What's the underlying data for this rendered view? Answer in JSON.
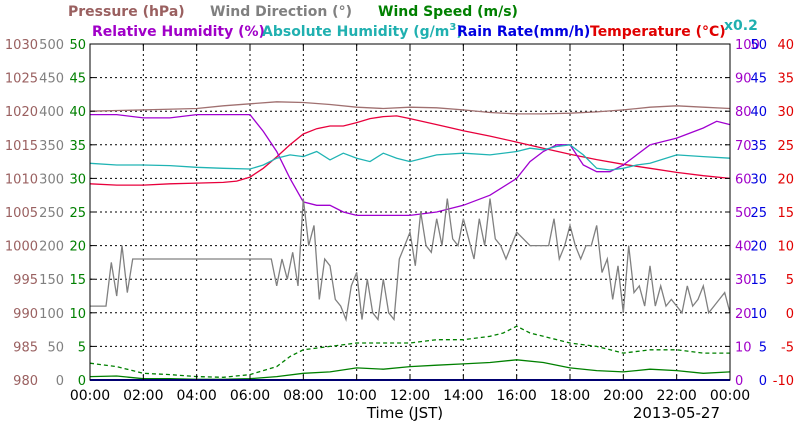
{
  "chart_data": {
    "type": "line",
    "date": "2013-05-27",
    "xlabel": "Time (JST)",
    "x_ticks": [
      "00:00",
      "02:00",
      "04:00",
      "06:00",
      "08:00",
      "10:00",
      "12:00",
      "14:00",
      "16:00",
      "18:00",
      "20:00",
      "22:00",
      "00:00"
    ],
    "xlim_hours": [
      0,
      24
    ],
    "grid": true,
    "legend": {
      "pressure": "Pressure (hPa)",
      "wind_direction": "Wind Direction (°)",
      "wind_speed": "Wind Speed (m/s)",
      "relative_humidity": "Relative Humidity (%)",
      "absolute_humidity_pre": "Absolute Humidity (g/m",
      "absolute_humidity_sup": "3",
      "absolute_humidity_post": ")",
      "rain_rate": "Rain Rate(mm/h)",
      "temperature": "Temperature (°C)",
      "abs_humidity_scale_note": "x0.2"
    },
    "axes": {
      "pressure": {
        "ticks": [
          "980",
          "985",
          "990",
          "995",
          "1000",
          "1005",
          "1010",
          "1015",
          "1020",
          "1025",
          "1030"
        ],
        "ylim": [
          980,
          1030
        ],
        "color": "#9a6060"
      },
      "wind_direction": {
        "ticks": [
          "0",
          "50",
          "100",
          "150",
          "200",
          "250",
          "300",
          "350",
          "400",
          "450",
          "500"
        ],
        "ylim": [
          0,
          500
        ],
        "color": "#808080"
      },
      "wind_speed": {
        "ticks": [
          "0",
          "5",
          "10",
          "15",
          "20",
          "25",
          "30",
          "35",
          "40",
          "45",
          "50"
        ],
        "ylim": [
          0,
          50
        ],
        "color": "#008000"
      },
      "relative_humidity": {
        "ticks": [
          "0",
          "10",
          "20",
          "30",
          "40",
          "50",
          "60",
          "70",
          "80",
          "90",
          "100"
        ],
        "ylim": [
          0,
          100
        ],
        "color": "#a000c8"
      },
      "rain_rate": {
        "ticks": [
          "0",
          "5",
          "10",
          "15",
          "20",
          "25",
          "30",
          "35",
          "40",
          "45",
          "50"
        ],
        "ylim": [
          0,
          50
        ],
        "color": "#0000e0"
      },
      "temperature": {
        "ticks": [
          "-10",
          "-5",
          "0",
          "5",
          "10",
          "15",
          "20",
          "25",
          "30",
          "35",
          "40"
        ],
        "ylim": [
          -10,
          40
        ],
        "color": "#e00000"
      }
    },
    "colors": {
      "absolute_humidity": "#20b0b0",
      "wind_speed_gust": "#008000"
    },
    "series": [
      {
        "name": "Pressure (hPa)",
        "axis": "pressure",
        "color": "#a07070",
        "x": [
          0,
          2,
          4,
          5,
          6,
          7,
          8,
          9,
          10,
          11,
          12,
          13,
          14,
          15,
          16,
          17,
          18,
          19,
          20,
          21,
          22,
          23,
          24
        ],
        "y": [
          1020.0,
          1020.2,
          1020.4,
          1020.8,
          1021.1,
          1021.4,
          1021.3,
          1021.0,
          1020.6,
          1020.4,
          1020.6,
          1020.5,
          1020.2,
          1019.8,
          1019.6,
          1019.6,
          1019.7,
          1019.9,
          1020.2,
          1020.6,
          1020.8,
          1020.6,
          1020.4
        ]
      },
      {
        "name": "Temperature (°C)",
        "axis": "temperature",
        "color": "#e8003c",
        "x": [
          0,
          1,
          2,
          3,
          4,
          5,
          5.5,
          6,
          6.5,
          7,
          7.5,
          8,
          8.5,
          9,
          9.5,
          10,
          10.5,
          11,
          11.5,
          12,
          13,
          14,
          15,
          16,
          17,
          18,
          19,
          20,
          21,
          22,
          23,
          24
        ],
        "y": [
          19.2,
          19.0,
          19.0,
          19.2,
          19.3,
          19.4,
          19.6,
          20.2,
          21.5,
          23.2,
          25.0,
          26.6,
          27.4,
          27.8,
          27.8,
          28.3,
          28.9,
          29.2,
          29.3,
          28.9,
          28.0,
          27.1,
          26.3,
          25.4,
          24.5,
          23.6,
          22.8,
          22.1,
          21.5,
          20.9,
          20.4,
          20.0
        ]
      },
      {
        "name": "Relative Humidity (%)",
        "axis": "relative_humidity",
        "color": "#a000d0",
        "x": [
          0,
          1,
          2,
          3,
          4,
          5,
          6,
          6.5,
          7,
          7.5,
          8,
          8.5,
          9,
          9.5,
          10,
          11,
          12,
          13,
          14,
          15,
          16,
          16.5,
          17,
          17.5,
          18,
          18.5,
          19,
          19.5,
          20,
          20.5,
          21,
          22,
          23,
          23.5,
          24
        ],
        "y": [
          79,
          79,
          78,
          78,
          79,
          79,
          79,
          74,
          68,
          60,
          53,
          52,
          52,
          50,
          49,
          49,
          49,
          50,
          52,
          55,
          60,
          65,
          68,
          70,
          70,
          64,
          62,
          62,
          64,
          67,
          70,
          72,
          75,
          77,
          76
        ]
      },
      {
        "name": "Absolute Humidity (g/m3) x0.2",
        "axis": "relative_humidity",
        "color": "#20b4b4",
        "x": [
          0,
          1,
          2,
          3,
          4,
          5,
          6,
          6.5,
          7,
          7.5,
          8,
          8.5,
          9,
          9.5,
          10,
          10.5,
          11,
          11.5,
          12,
          13,
          14,
          15,
          16,
          16.5,
          17,
          17.5,
          18,
          18.5,
          19,
          19.5,
          20,
          20.5,
          21,
          22,
          23,
          24
        ],
        "y": [
          64.5,
          64.0,
          64.0,
          63.8,
          63.3,
          63.0,
          62.8,
          64.0,
          66.0,
          67.0,
          66.5,
          68.0,
          65.5,
          67.5,
          66.0,
          65.0,
          67.5,
          66.0,
          65.0,
          67.0,
          67.5,
          67.0,
          68.0,
          69.0,
          68.5,
          69.5,
          70.0,
          67.0,
          63.0,
          62.5,
          63.0,
          64.0,
          64.5,
          67.0,
          66.5,
          66.0
        ]
      },
      {
        "name": "Wind Direction (°)",
        "axis": "wind_direction",
        "color": "#808080",
        "x": [
          0,
          0.6,
          0.8,
          1.0,
          1.2,
          1.4,
          1.6,
          2,
          3,
          4,
          5,
          6,
          6.8,
          7.0,
          7.2,
          7.4,
          7.6,
          7.8,
          8.0,
          8.2,
          8.4,
          8.6,
          8.8,
          9.0,
          9.2,
          9.4,
          9.6,
          9.8,
          10.0,
          10.2,
          10.4,
          10.6,
          10.8,
          11.0,
          11.2,
          11.4,
          11.6,
          11.8,
          12.0,
          12.2,
          12.4,
          12.6,
          12.8,
          13.0,
          13.2,
          13.4,
          13.6,
          13.8,
          14.0,
          14.2,
          14.4,
          14.6,
          14.8,
          15.0,
          15.2,
          15.4,
          15.6,
          15.8,
          16.0,
          16.5,
          17.0,
          17.2,
          17.4,
          17.6,
          17.8,
          18.0,
          18.2,
          18.4,
          18.6,
          18.8,
          19.0,
          19.2,
          19.4,
          19.6,
          19.8,
          20.0,
          20.2,
          20.4,
          20.6,
          20.8,
          21.0,
          21.2,
          21.4,
          21.6,
          21.8,
          22.0,
          22.2,
          22.4,
          22.6,
          22.8,
          23.0,
          23.2,
          23.4,
          23.6,
          23.8,
          24.0
        ],
        "y": [
          110,
          110,
          175,
          125,
          200,
          130,
          180,
          180,
          180,
          180,
          180,
          180,
          180,
          140,
          180,
          150,
          190,
          140,
          270,
          200,
          230,
          120,
          180,
          170,
          120,
          110,
          90,
          140,
          160,
          90,
          150,
          100,
          90,
          150,
          100,
          90,
          180,
          200,
          220,
          170,
          250,
          200,
          190,
          240,
          200,
          270,
          210,
          200,
          240,
          210,
          180,
          240,
          200,
          270,
          210,
          200,
          180,
          200,
          220,
          200,
          200,
          200,
          240,
          180,
          200,
          230,
          200,
          180,
          200,
          200,
          230,
          160,
          180,
          120,
          170,
          100,
          200,
          130,
          140,
          110,
          170,
          110,
          140,
          110,
          120,
          110,
          100,
          140,
          110,
          120,
          140,
          100,
          110,
          120,
          130,
          100
        ]
      },
      {
        "name": "Wind Speed (m/s)",
        "axis": "wind_speed",
        "color": "#008000",
        "x": [
          0,
          1,
          2,
          3,
          4,
          5,
          6,
          7,
          8,
          9,
          10,
          11,
          12,
          13,
          14,
          15,
          16,
          17,
          18,
          19,
          20,
          21,
          22,
          23,
          24
        ],
        "y": [
          0.5,
          0.6,
          0.2,
          0.2,
          0.1,
          0.1,
          0.2,
          0.5,
          1.0,
          1.2,
          1.8,
          1.6,
          2.0,
          2.2,
          2.4,
          2.6,
          3.0,
          2.6,
          1.8,
          1.4,
          1.2,
          1.6,
          1.4,
          1.0,
          1.2
        ]
      },
      {
        "name": "Wind Speed (m/s) gust",
        "axis": "wind_speed",
        "color": "#008000",
        "dashed": true,
        "x": [
          0,
          1,
          2,
          3,
          4,
          5,
          6,
          7,
          7.5,
          8,
          9,
          10,
          11,
          12,
          13,
          14,
          15,
          15.5,
          16,
          16.5,
          17,
          18,
          19,
          20,
          21,
          22,
          23,
          24
        ],
        "y": [
          2.5,
          2.0,
          1.0,
          0.8,
          0.5,
          0.4,
          0.8,
          2.0,
          3.5,
          4.5,
          5.0,
          5.5,
          5.5,
          5.5,
          6.0,
          6.0,
          6.5,
          7.0,
          8.0,
          7.0,
          6.5,
          5.5,
          5.0,
          4.0,
          4.5,
          4.5,
          4.0,
          4.0
        ]
      },
      {
        "name": "Rain Rate(mm/h)",
        "axis": "rain_rate",
        "color": "#0000e0",
        "x": [
          0,
          24
        ],
        "y": [
          0,
          0
        ]
      }
    ]
  }
}
